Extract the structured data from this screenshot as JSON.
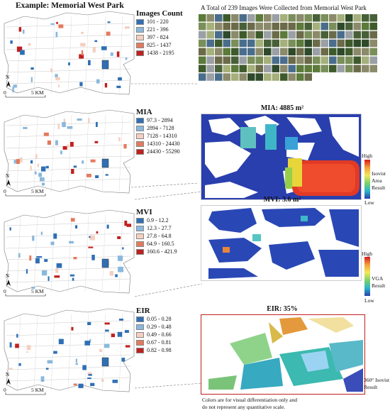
{
  "header": {
    "title": "Example: Memorial West Park",
    "gallery_caption": "A Total of 239 Images Were Collected from Memorial West Park"
  },
  "colors": {
    "c1": "#2f6fb5",
    "c2": "#8ab8dc",
    "c3": "#f5cfc0",
    "c4": "#e47a5c",
    "c5": "#c0201e",
    "grid_blue": "#2a3fae"
  },
  "panels": [
    {
      "name": "Images Count",
      "ranges": [
        "101 - 220",
        "221 - 396",
        "397 - 824",
        "825 - 1437",
        "1438 - 2195"
      ]
    },
    {
      "name": "MIA",
      "ranges": [
        "97.3 - 2894",
        "2894 - 7128",
        "7128 - 14310",
        "14310 - 24430",
        "24430 - 55290"
      ],
      "result_title": "MIA: 4885 m²",
      "colorbar": {
        "high": "High",
        "low": "Low",
        "label1": "Isovist",
        "label2": "Area",
        "label3": "Result"
      }
    },
    {
      "name": "MVI",
      "ranges": [
        "0.9 - 12.2",
        "12.3 - 27.7",
        "27.8 - 64.8",
        "64.9 - 160.5",
        "160.6 - 421.9"
      ],
      "result_title": "MVI: 3.6 m²",
      "colorbar": {
        "high": "High",
        "low": "Low",
        "label1": "VGA",
        "label2": "Result"
      }
    },
    {
      "name": "EIR",
      "ranges": [
        "0.05 - 0.28",
        "0.29 - 0.48",
        "0.49 - 0.66",
        "0.67 - 0.81",
        "0.82 - 0.98"
      ],
      "result_title": "EIR: 35%",
      "side_label1": "360° Isovist",
      "side_label2": "Result",
      "note1": "Colors are for visual differentiation only and",
      "note2": "do not represent any quantitative scale."
    }
  ],
  "map": {
    "north": "N",
    "scale_zero": "0",
    "scale_label": "5 KM"
  }
}
